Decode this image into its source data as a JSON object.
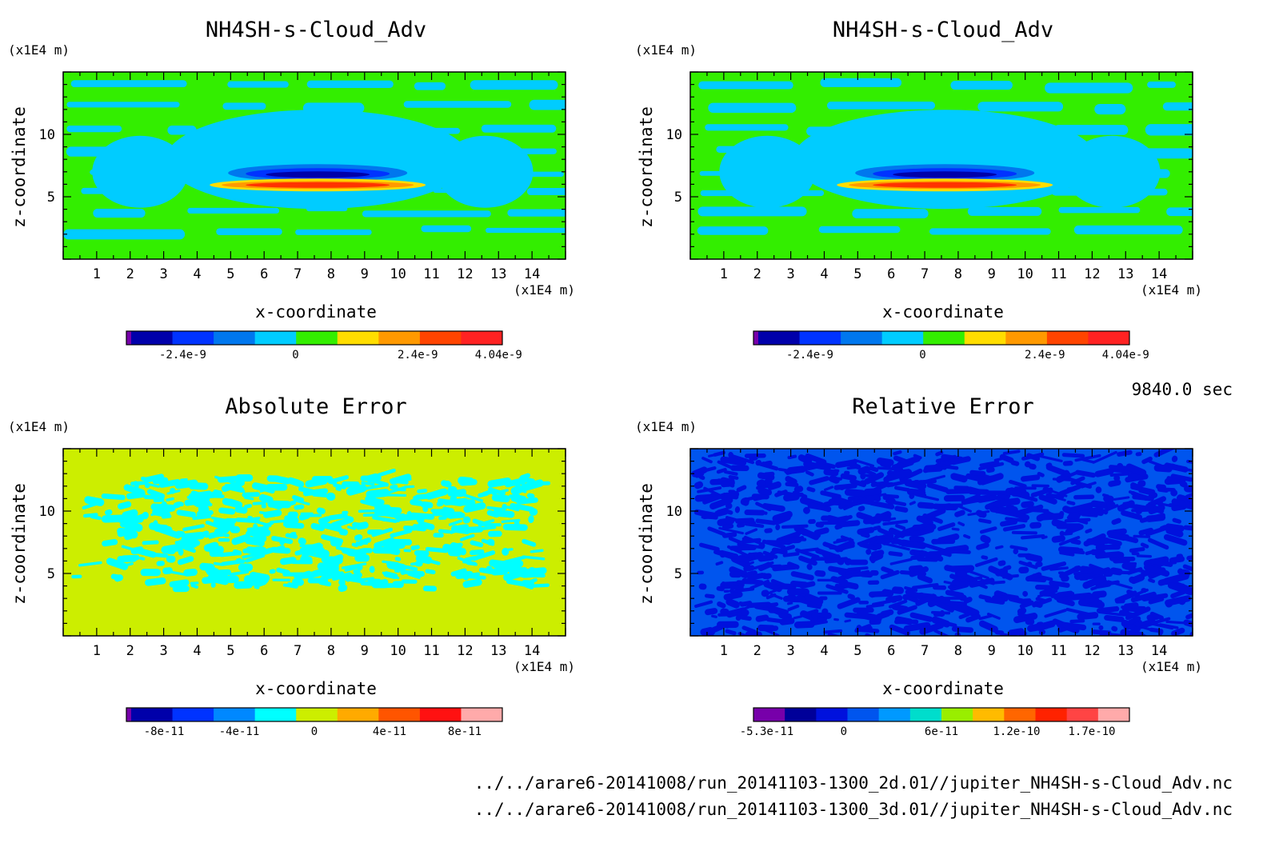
{
  "time_label": "9840.0 sec",
  "footer": {
    "line1": "../../arare6-20141008/run_20141103-1300_2d.01//jupiter_NH4SH-s-Cloud_Adv.nc",
    "line2": "../../arare6-20141008/run_20141103-1300_3d.01//jupiter_NH4SH-s-Cloud_Adv.nc"
  },
  "chart_data": [
    {
      "type": "heatmap",
      "title": "NH4SH-s-Cloud_Adv",
      "xlabel": "x-coordinate",
      "ylabel": "z-coordinate",
      "x_unit": "(x1E4 m)",
      "y_unit": "(x1E4 m)",
      "xlim": [
        0,
        15
      ],
      "ylim": [
        0,
        15
      ],
      "x_ticks": [
        1,
        2,
        3,
        4,
        5,
        6,
        7,
        8,
        9,
        10,
        11,
        12,
        13,
        14
      ],
      "y_ticks": [
        5,
        10
      ],
      "background_color": "#33ee00",
      "pattern_color": "#00ccff",
      "feature": {
        "center_x": 7.6,
        "center_z": 6.2,
        "description_colors": [
          "#0000aa",
          "#ff3300",
          "#ffdd00"
        ]
      },
      "colorbar": {
        "colors": [
          "#7700aa",
          "#0000aa",
          "#0033ff",
          "#0077ee",
          "#00ccff",
          "#33ee00",
          "#ffdd00",
          "#ff9900",
          "#ff4400",
          "#ff2222"
        ],
        "tick_labels": [
          "-2.4e-9",
          "0",
          "2.4e-9",
          "4.04e-9"
        ]
      }
    },
    {
      "type": "heatmap",
      "title": "NH4SH-s-Cloud_Adv",
      "xlabel": "x-coordinate",
      "ylabel": "z-coordinate",
      "x_unit": "(x1E4 m)",
      "y_unit": "(x1E4 m)",
      "xlim": [
        0,
        15
      ],
      "ylim": [
        0,
        15
      ],
      "x_ticks": [
        1,
        2,
        3,
        4,
        5,
        6,
        7,
        8,
        9,
        10,
        11,
        12,
        13,
        14
      ],
      "y_ticks": [
        5,
        10
      ],
      "background_color": "#33ee00",
      "pattern_color": "#00ccff",
      "feature": {
        "center_x": 7.6,
        "center_z": 6.2,
        "description_colors": [
          "#0000aa",
          "#ff3300",
          "#ffdd00"
        ]
      },
      "colorbar": {
        "colors": [
          "#7700aa",
          "#0000aa",
          "#0033ff",
          "#0077ee",
          "#00ccff",
          "#33ee00",
          "#ffdd00",
          "#ff9900",
          "#ff4400",
          "#ff2222"
        ],
        "tick_labels": [
          "-2.4e-9",
          "0",
          "2.4e-9",
          "4.04e-9"
        ]
      }
    },
    {
      "type": "heatmap",
      "title": "Absolute Error",
      "xlabel": "x-coordinate",
      "ylabel": "z-coordinate",
      "x_unit": "(x1E4 m)",
      "y_unit": "(x1E4 m)",
      "xlim": [
        0,
        15
      ],
      "ylim": [
        0,
        15
      ],
      "x_ticks": [
        1,
        2,
        3,
        4,
        5,
        6,
        7,
        8,
        9,
        10,
        11,
        12,
        13,
        14
      ],
      "y_ticks": [
        5,
        10
      ],
      "background_color": "#ccee00",
      "pattern_color": "#00ffff",
      "colorbar": {
        "colors": [
          "#7700aa",
          "#0000aa",
          "#0033ff",
          "#0088ff",
          "#00ffff",
          "#ccee00",
          "#ffaa00",
          "#ff5500",
          "#ff1111",
          "#ffaaaa"
        ],
        "tick_labels": [
          "-8e-11",
          "-4e-11",
          "0",
          "4e-11",
          "8e-11"
        ]
      }
    },
    {
      "type": "heatmap",
      "title": "Relative Error",
      "xlabel": "x-coordinate",
      "ylabel": "z-coordinate",
      "x_unit": "(x1E4 m)",
      "y_unit": "(x1E4 m)",
      "xlim": [
        0,
        15
      ],
      "ylim": [
        0,
        15
      ],
      "x_ticks": [
        1,
        2,
        3,
        4,
        5,
        6,
        7,
        8,
        9,
        10,
        11,
        12,
        13,
        14
      ],
      "y_ticks": [
        5,
        10
      ],
      "background_color": "#0055ee",
      "pattern_color": "#0011dd",
      "colorbar": {
        "colors": [
          "#7700aa",
          "#000099",
          "#0011dd",
          "#0055ee",
          "#0099ff",
          "#00ddcc",
          "#99ee00",
          "#ffbb00",
          "#ff6600",
          "#ff2200",
          "#ff4444",
          "#ffaaaa"
        ],
        "tick_labels": [
          "-5.3e-11",
          "0",
          "6e-11",
          "1.2e-10",
          "1.7e-10"
        ]
      }
    }
  ]
}
